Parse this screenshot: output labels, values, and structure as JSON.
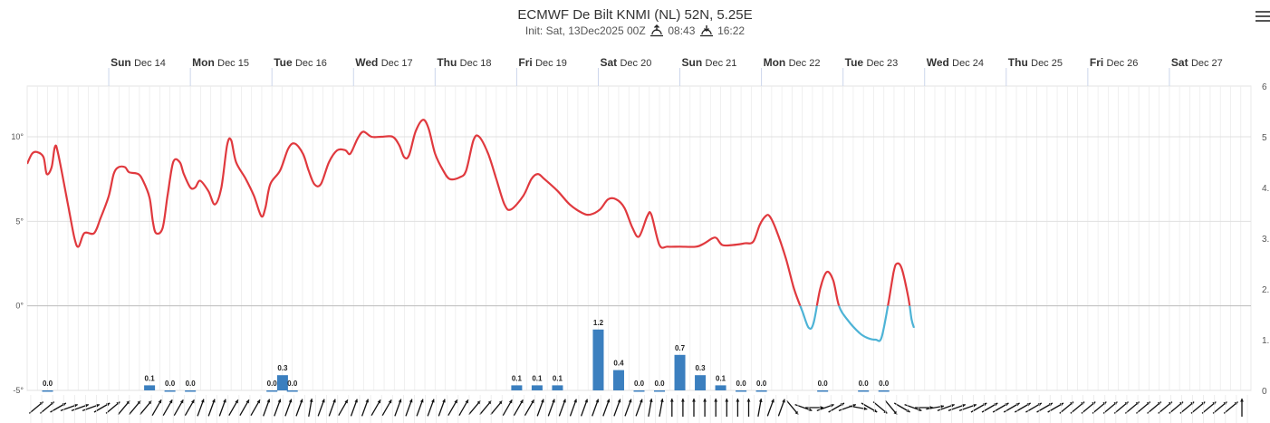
{
  "header": {
    "title": "ECMWF De Bilt KNMI (NL) 52N, 5.25E",
    "init_text": "Init: Sat, 13Dec2025 00Z",
    "sunrise": "08:43",
    "sunset": "16:22",
    "sunrise_icon": "sunrise-icon",
    "sunset_icon": "sunset-icon",
    "menu_icon": "hamburger-menu-icon"
  },
  "chart_data": {
    "type": "line",
    "days": [
      {
        "dow": "Sun",
        "date": "Dec 14"
      },
      {
        "dow": "Mon",
        "date": "Dec 15"
      },
      {
        "dow": "Tue",
        "date": "Dec 16"
      },
      {
        "dow": "Wed",
        "date": "Dec 17"
      },
      {
        "dow": "Thu",
        "date": "Dec 18"
      },
      {
        "dow": "Fri",
        "date": "Dec 19"
      },
      {
        "dow": "Sat",
        "date": "Dec 20"
      },
      {
        "dow": "Sun",
        "date": "Dec 21"
      },
      {
        "dow": "Mon",
        "date": "Dec 22"
      },
      {
        "dow": "Tue",
        "date": "Dec 23"
      },
      {
        "dow": "Wed",
        "date": "Dec 24"
      },
      {
        "dow": "Thu",
        "date": "Dec 25"
      },
      {
        "dow": "Fri",
        "date": "Dec 26"
      },
      {
        "dow": "Sat",
        "date": "Dec 27"
      }
    ],
    "x_range_days": [
      13.0,
      28.0
    ],
    "y_left": {
      "range": [
        -5,
        13
      ],
      "ticks": [
        -5,
        0,
        5,
        10
      ],
      "tick_labels": [
        "-5°",
        "0°",
        "5°",
        "10°"
      ]
    },
    "y_right": {
      "range": [
        0,
        6
      ],
      "ticks": [
        0,
        1,
        2,
        3,
        4,
        5,
        6
      ],
      "tick_labels": [
        "0",
        "1.",
        "2.",
        "3.",
        "4.",
        "5",
        "6"
      ]
    },
    "colors": {
      "temp_above_zero": "#e0393e",
      "temp_below_zero": "#4db3d6",
      "precip": "#3b7fbf",
      "wind": "#111111",
      "grid": "#e6e6e6",
      "zero_line": "#bcbcbc"
    },
    "series": [
      {
        "name": "",
        "axis": "left",
        "points": [
          [
            13.0,
            8.4
          ],
          [
            13.06,
            9.0
          ],
          [
            13.12,
            9.1
          ],
          [
            13.2,
            8.8
          ],
          [
            13.24,
            7.8
          ],
          [
            13.3,
            8.2
          ],
          [
            13.34,
            9.4
          ],
          [
            13.38,
            9.0
          ],
          [
            13.5,
            6.0
          ],
          [
            13.58,
            4.0
          ],
          [
            13.63,
            3.5
          ],
          [
            13.7,
            4.3
          ],
          [
            13.82,
            4.3
          ],
          [
            13.9,
            5.2
          ],
          [
            14.0,
            6.5
          ],
          [
            14.06,
            7.8
          ],
          [
            14.12,
            8.2
          ],
          [
            14.2,
            8.2
          ],
          [
            14.25,
            7.9
          ],
          [
            14.36,
            7.8
          ],
          [
            14.42,
            7.4
          ],
          [
            14.5,
            6.4
          ],
          [
            14.54,
            5.0
          ],
          [
            14.58,
            4.3
          ],
          [
            14.66,
            4.6
          ],
          [
            14.72,
            6.5
          ],
          [
            14.79,
            8.5
          ],
          [
            14.87,
            8.5
          ],
          [
            14.92,
            7.8
          ],
          [
            15.0,
            7.0
          ],
          [
            15.06,
            7.0
          ],
          [
            15.12,
            7.4
          ],
          [
            15.22,
            6.8
          ],
          [
            15.3,
            6.0
          ],
          [
            15.38,
            7.0
          ],
          [
            15.45,
            9.5
          ],
          [
            15.5,
            9.8
          ],
          [
            15.56,
            8.5
          ],
          [
            15.68,
            7.5
          ],
          [
            15.78,
            6.5
          ],
          [
            15.87,
            5.3
          ],
          [
            15.92,
            5.8
          ],
          [
            15.98,
            7.2
          ],
          [
            16.1,
            8.0
          ],
          [
            16.2,
            9.3
          ],
          [
            16.28,
            9.6
          ],
          [
            16.38,
            9.0
          ],
          [
            16.45,
            8.0
          ],
          [
            16.52,
            7.2
          ],
          [
            16.6,
            7.2
          ],
          [
            16.7,
            8.5
          ],
          [
            16.8,
            9.2
          ],
          [
            16.9,
            9.2
          ],
          [
            16.96,
            9.0
          ],
          [
            17.05,
            9.9
          ],
          [
            17.12,
            10.3
          ],
          [
            17.22,
            10.0
          ],
          [
            17.34,
            10.0
          ],
          [
            17.48,
            10.0
          ],
          [
            17.56,
            9.5
          ],
          [
            17.62,
            8.8
          ],
          [
            17.68,
            8.9
          ],
          [
            17.76,
            10.3
          ],
          [
            17.85,
            11.0
          ],
          [
            17.92,
            10.5
          ],
          [
            18.0,
            9.0
          ],
          [
            18.1,
            8.0
          ],
          [
            18.18,
            7.5
          ],
          [
            18.3,
            7.6
          ],
          [
            18.38,
            8.0
          ],
          [
            18.47,
            9.8
          ],
          [
            18.54,
            10.0
          ],
          [
            18.65,
            9.0
          ],
          [
            18.75,
            7.5
          ],
          [
            18.85,
            6.0
          ],
          [
            18.93,
            5.7
          ],
          [
            19.08,
            6.5
          ],
          [
            19.18,
            7.5
          ],
          [
            19.26,
            7.8
          ],
          [
            19.34,
            7.5
          ],
          [
            19.5,
            6.8
          ],
          [
            19.65,
            6.0
          ],
          [
            19.8,
            5.5
          ],
          [
            19.9,
            5.4
          ],
          [
            20.02,
            5.7
          ],
          [
            20.12,
            6.3
          ],
          [
            20.22,
            6.3
          ],
          [
            20.32,
            5.8
          ],
          [
            20.42,
            4.6
          ],
          [
            20.5,
            4.1
          ],
          [
            20.6,
            5.3
          ],
          [
            20.65,
            5.4
          ],
          [
            20.75,
            3.6
          ],
          [
            20.85,
            3.5
          ],
          [
            21.0,
            3.5
          ],
          [
            21.2,
            3.5
          ],
          [
            21.3,
            3.7
          ],
          [
            21.4,
            4.0
          ],
          [
            21.45,
            4.0
          ],
          [
            21.52,
            3.6
          ],
          [
            21.65,
            3.6
          ],
          [
            21.8,
            3.7
          ],
          [
            21.9,
            3.8
          ],
          [
            21.98,
            4.8
          ],
          [
            22.05,
            5.3
          ],
          [
            22.1,
            5.3
          ],
          [
            22.18,
            4.5
          ],
          [
            22.3,
            2.8
          ],
          [
            22.4,
            1.0
          ],
          [
            22.5,
            -0.3
          ],
          [
            22.58,
            -1.3
          ],
          [
            22.64,
            -1.0
          ],
          [
            22.72,
            1.0
          ],
          [
            22.8,
            2.0
          ],
          [
            22.88,
            1.5
          ],
          [
            22.95,
            0
          ],
          [
            23.05,
            -0.8
          ],
          [
            23.2,
            -1.6
          ],
          [
            23.3,
            -1.9
          ],
          [
            23.4,
            -2.0
          ],
          [
            23.47,
            -1.9
          ],
          [
            23.55,
            0
          ],
          [
            23.62,
            2.0
          ],
          [
            23.66,
            2.5
          ],
          [
            23.72,
            2.2
          ],
          [
            23.8,
            0.5
          ],
          [
            23.84,
            -0.8
          ],
          [
            23.87,
            -1.3
          ]
        ]
      },
      {
        "name": "",
        "axis": "right",
        "type": "bar",
        "bars": [
          [
            13.25,
            0.0
          ],
          [
            14.5,
            0.1
          ],
          [
            14.75,
            0.0
          ],
          [
            15.0,
            0.0
          ],
          [
            16.0,
            0.0
          ],
          [
            16.13,
            0.3
          ],
          [
            16.25,
            0.0
          ],
          [
            19.0,
            0.1
          ],
          [
            19.25,
            0.1
          ],
          [
            19.5,
            0.1
          ],
          [
            20.0,
            1.2
          ],
          [
            20.25,
            0.4
          ],
          [
            20.5,
            0.0
          ],
          [
            20.75,
            0.0
          ],
          [
            21.0,
            0.7
          ],
          [
            21.25,
            0.3
          ],
          [
            21.5,
            0.1
          ],
          [
            21.75,
            0.0
          ],
          [
            22.0,
            0.0
          ],
          [
            22.75,
            0.0
          ],
          [
            23.25,
            0.0
          ],
          [
            23.5,
            0.0
          ]
        ],
        "labels": [
          "0.0",
          "0.1",
          "0.0",
          "0.0",
          "0.0",
          "0.3",
          "0.0",
          "0.1",
          "0.1",
          "0.1",
          "1.2",
          "0.4",
          "0.0",
          "0.0",
          "0.7",
          "0.3",
          "0.1",
          "0.0",
          "0.0",
          "0.0",
          "0.0",
          "0.0"
        ]
      }
    ],
    "wind_barbs": {
      "description": "wind direction arrows along bottom of plot",
      "directions_deg": [
        230,
        230,
        240,
        250,
        250,
        250,
        240,
        230,
        220,
        220,
        220,
        210,
        210,
        210,
        210,
        200,
        200,
        200,
        210,
        210,
        210,
        200,
        200,
        200,
        200,
        190,
        200,
        200,
        210,
        200,
        200,
        210,
        210,
        200,
        200,
        200,
        200,
        200,
        210,
        210,
        220,
        220,
        220,
        210,
        210,
        210,
        200,
        200,
        200,
        200,
        200,
        200,
        200,
        200,
        200,
        200,
        190,
        190,
        180,
        180,
        180,
        180,
        180,
        180,
        180,
        180,
        190,
        200,
        200,
        320,
        290,
        270,
        250,
        240,
        250,
        280,
        300,
        310,
        320,
        300,
        290,
        270,
        260,
        250,
        250,
        250,
        240,
        240,
        240,
        240,
        240,
        240,
        240,
        240,
        230,
        230,
        230,
        230,
        230,
        230,
        230,
        230,
        230,
        230,
        230,
        230,
        230,
        230,
        230,
        230,
        180
      ]
    }
  }
}
